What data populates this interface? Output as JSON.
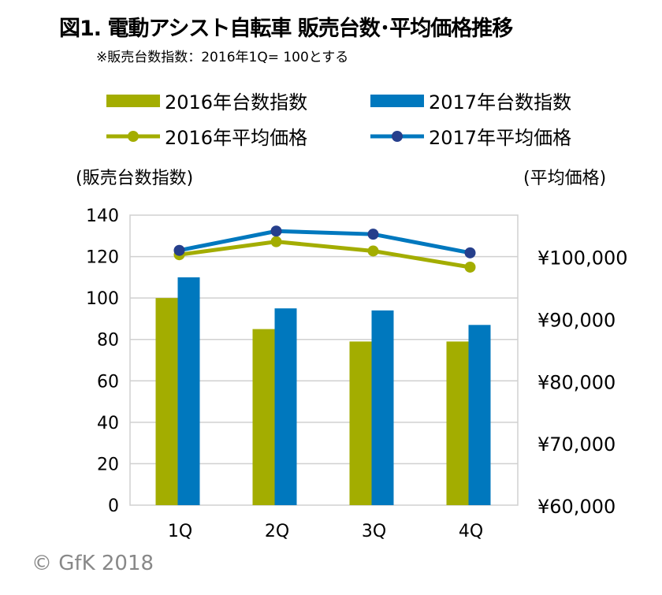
{
  "chart_data": {
    "type": "bar+line",
    "title": "図1. 電動アシスト自転車 販売台数･平均価格推移",
    "subtitle": "※販売台数指数：2016年1Q= 100とする",
    "categories": [
      "1Q",
      "2Q",
      "3Q",
      "4Q"
    ],
    "ylabel_left": "(販売台数指数)",
    "ylabel_right": "(平均価格)",
    "ylim_left": [
      0,
      140
    ],
    "yticks_left": [
      "0",
      "20",
      "40",
      "60",
      "80",
      "100",
      "120",
      "140"
    ],
    "ylim_right": [
      60000,
      106667
    ],
    "yticks_right": [
      "¥60,000",
      "¥70,000",
      "¥80,000",
      "¥90,000",
      "¥100,000"
    ],
    "yticks_right_values": [
      60000,
      70000,
      80000,
      90000,
      100000
    ],
    "grid": true,
    "legend_position": "top",
    "series": [
      {
        "name": "2016年台数指数",
        "type": "bar",
        "axis": "left",
        "color": "#a3ad00",
        "values": [
          100,
          85,
          79,
          79
        ]
      },
      {
        "name": "2017年台数指数",
        "type": "bar",
        "axis": "left",
        "color": "#0078be",
        "values": [
          110,
          95,
          94,
          87
        ]
      },
      {
        "name": "2016年平均価格",
        "type": "line",
        "axis": "right",
        "color": "#a3ad00",
        "marker_color": "#a3ad00",
        "values": [
          100300,
          102400,
          100900,
          98300
        ]
      },
      {
        "name": "2017年平均価格",
        "type": "line",
        "axis": "right",
        "color": "#0078be",
        "marker_color": "#263f8c",
        "values": [
          101000,
          104100,
          103600,
          100600
        ]
      }
    ]
  },
  "copyright": "© GfK 2018"
}
